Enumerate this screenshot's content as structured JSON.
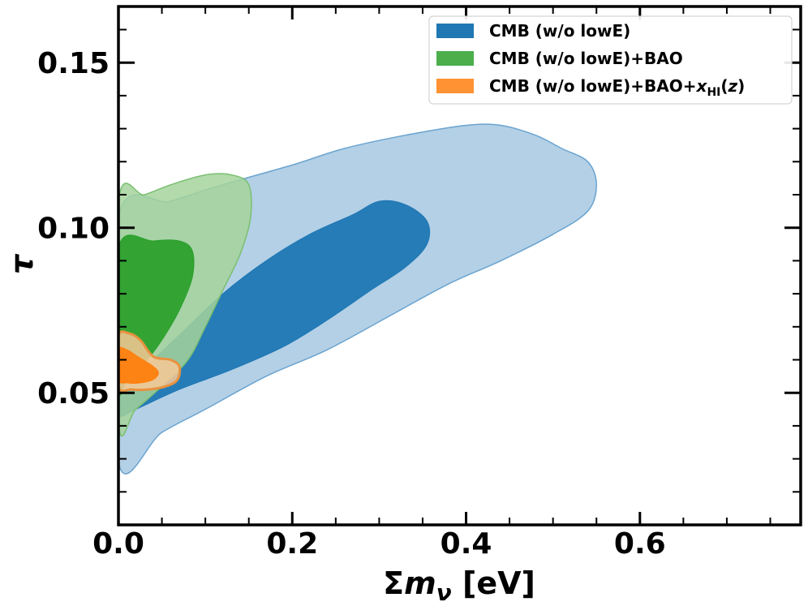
{
  "chart_data": {
    "type": "contour",
    "title": "",
    "xlabel": "Σm",
    "xlabel_sub": "ν",
    "xlabel_unit": "[eV]",
    "ylabel": "τ",
    "xlim": [
      0.0,
      0.785
    ],
    "ylim": [
      0.01,
      0.167
    ],
    "x_ticks": [
      0.0,
      0.2,
      0.4,
      0.6
    ],
    "x_tick_labels": [
      "0.0",
      "0.2",
      "0.4",
      "0.6"
    ],
    "y_ticks": [
      0.05,
      0.1,
      0.15
    ],
    "y_tick_labels": [
      "0.05",
      "0.10",
      "0.15"
    ],
    "legend_position": "top-right",
    "series": [
      {
        "name": "CMB (w/o lowE)",
        "legend_label": "CMB (w/o lowE)",
        "color": "#1f77b4",
        "outer_color": "#a6c8e2",
        "outer_edge": "#6aa3cf",
        "contour_95": [
          [
            0.0,
            0.103
          ],
          [
            0.06,
            0.108
          ],
          [
            0.12,
            0.113
          ],
          [
            0.2,
            0.119
          ],
          [
            0.26,
            0.124
          ],
          [
            0.33,
            0.128
          ],
          [
            0.4,
            0.131
          ],
          [
            0.44,
            0.131
          ],
          [
            0.48,
            0.128
          ],
          [
            0.51,
            0.124
          ],
          [
            0.54,
            0.12
          ],
          [
            0.55,
            0.113
          ],
          [
            0.54,
            0.105
          ],
          [
            0.5,
            0.098
          ],
          [
            0.44,
            0.09
          ],
          [
            0.38,
            0.083
          ],
          [
            0.31,
            0.073
          ],
          [
            0.24,
            0.063
          ],
          [
            0.17,
            0.055
          ],
          [
            0.1,
            0.045
          ],
          [
            0.05,
            0.038
          ],
          [
            0.0,
            0.029
          ]
        ],
        "contour_68": [
          [
            0.0,
            0.043
          ],
          [
            0.0,
            0.05
          ],
          [
            0.04,
            0.06
          ],
          [
            0.08,
            0.07
          ],
          [
            0.12,
            0.08
          ],
          [
            0.17,
            0.09
          ],
          [
            0.22,
            0.098
          ],
          [
            0.27,
            0.104
          ],
          [
            0.3,
            0.108
          ],
          [
            0.33,
            0.107
          ],
          [
            0.355,
            0.102
          ],
          [
            0.355,
            0.095
          ],
          [
            0.33,
            0.088
          ],
          [
            0.29,
            0.081
          ],
          [
            0.24,
            0.072
          ],
          [
            0.19,
            0.064
          ],
          [
            0.13,
            0.057
          ],
          [
            0.07,
            0.051
          ],
          [
            0.02,
            0.045
          ]
        ]
      },
      {
        "name": "CMB (w/o lowE)+BAO",
        "legend_label": "CMB (w/o lowE)+BAO",
        "color": "#2ca02c",
        "outer_color": "#a4d49b",
        "outer_edge": "#7bbf72",
        "contour_95": [
          [
            0.0,
            0.041
          ],
          [
            0.0,
            0.108
          ],
          [
            0.03,
            0.11
          ],
          [
            0.06,
            0.113
          ],
          [
            0.1,
            0.116
          ],
          [
            0.13,
            0.116
          ],
          [
            0.15,
            0.113
          ],
          [
            0.152,
            0.103
          ],
          [
            0.14,
            0.092
          ],
          [
            0.12,
            0.081
          ],
          [
            0.1,
            0.07
          ],
          [
            0.08,
            0.06
          ],
          [
            0.05,
            0.052
          ],
          [
            0.02,
            0.045
          ]
        ],
        "contour_68": [
          [
            0.0,
            0.052
          ],
          [
            0.0,
            0.094
          ],
          [
            0.04,
            0.096
          ],
          [
            0.07,
            0.096
          ],
          [
            0.085,
            0.093
          ],
          [
            0.085,
            0.085
          ],
          [
            0.07,
            0.075
          ],
          [
            0.05,
            0.066
          ],
          [
            0.03,
            0.059
          ],
          [
            0.01,
            0.054
          ]
        ]
      },
      {
        "name": "CMB (w/o lowE)+BAO+x_HI(z)",
        "legend_label": "CMB (w/o lowE)+BAO+",
        "legend_math": "x",
        "legend_sub": "HI",
        "legend_suffix": "(z)",
        "color": "#ff7f0e",
        "outer_color": "#f8c896",
        "outer_edge": "#e8923f",
        "contour_95": [
          [
            0.0,
            0.052
          ],
          [
            0.0,
            0.067
          ],
          [
            0.012,
            0.068
          ],
          [
            0.025,
            0.066
          ],
          [
            0.04,
            0.061
          ],
          [
            0.06,
            0.06
          ],
          [
            0.07,
            0.058
          ],
          [
            0.068,
            0.054
          ],
          [
            0.055,
            0.052
          ],
          [
            0.035,
            0.051
          ],
          [
            0.015,
            0.051
          ]
        ],
        "contour_68": [
          [
            0.0,
            0.054
          ],
          [
            0.0,
            0.063
          ],
          [
            0.01,
            0.063
          ],
          [
            0.022,
            0.061
          ],
          [
            0.04,
            0.058
          ],
          [
            0.046,
            0.056
          ],
          [
            0.04,
            0.054
          ],
          [
            0.025,
            0.053
          ],
          [
            0.01,
            0.053
          ]
        ]
      }
    ]
  }
}
